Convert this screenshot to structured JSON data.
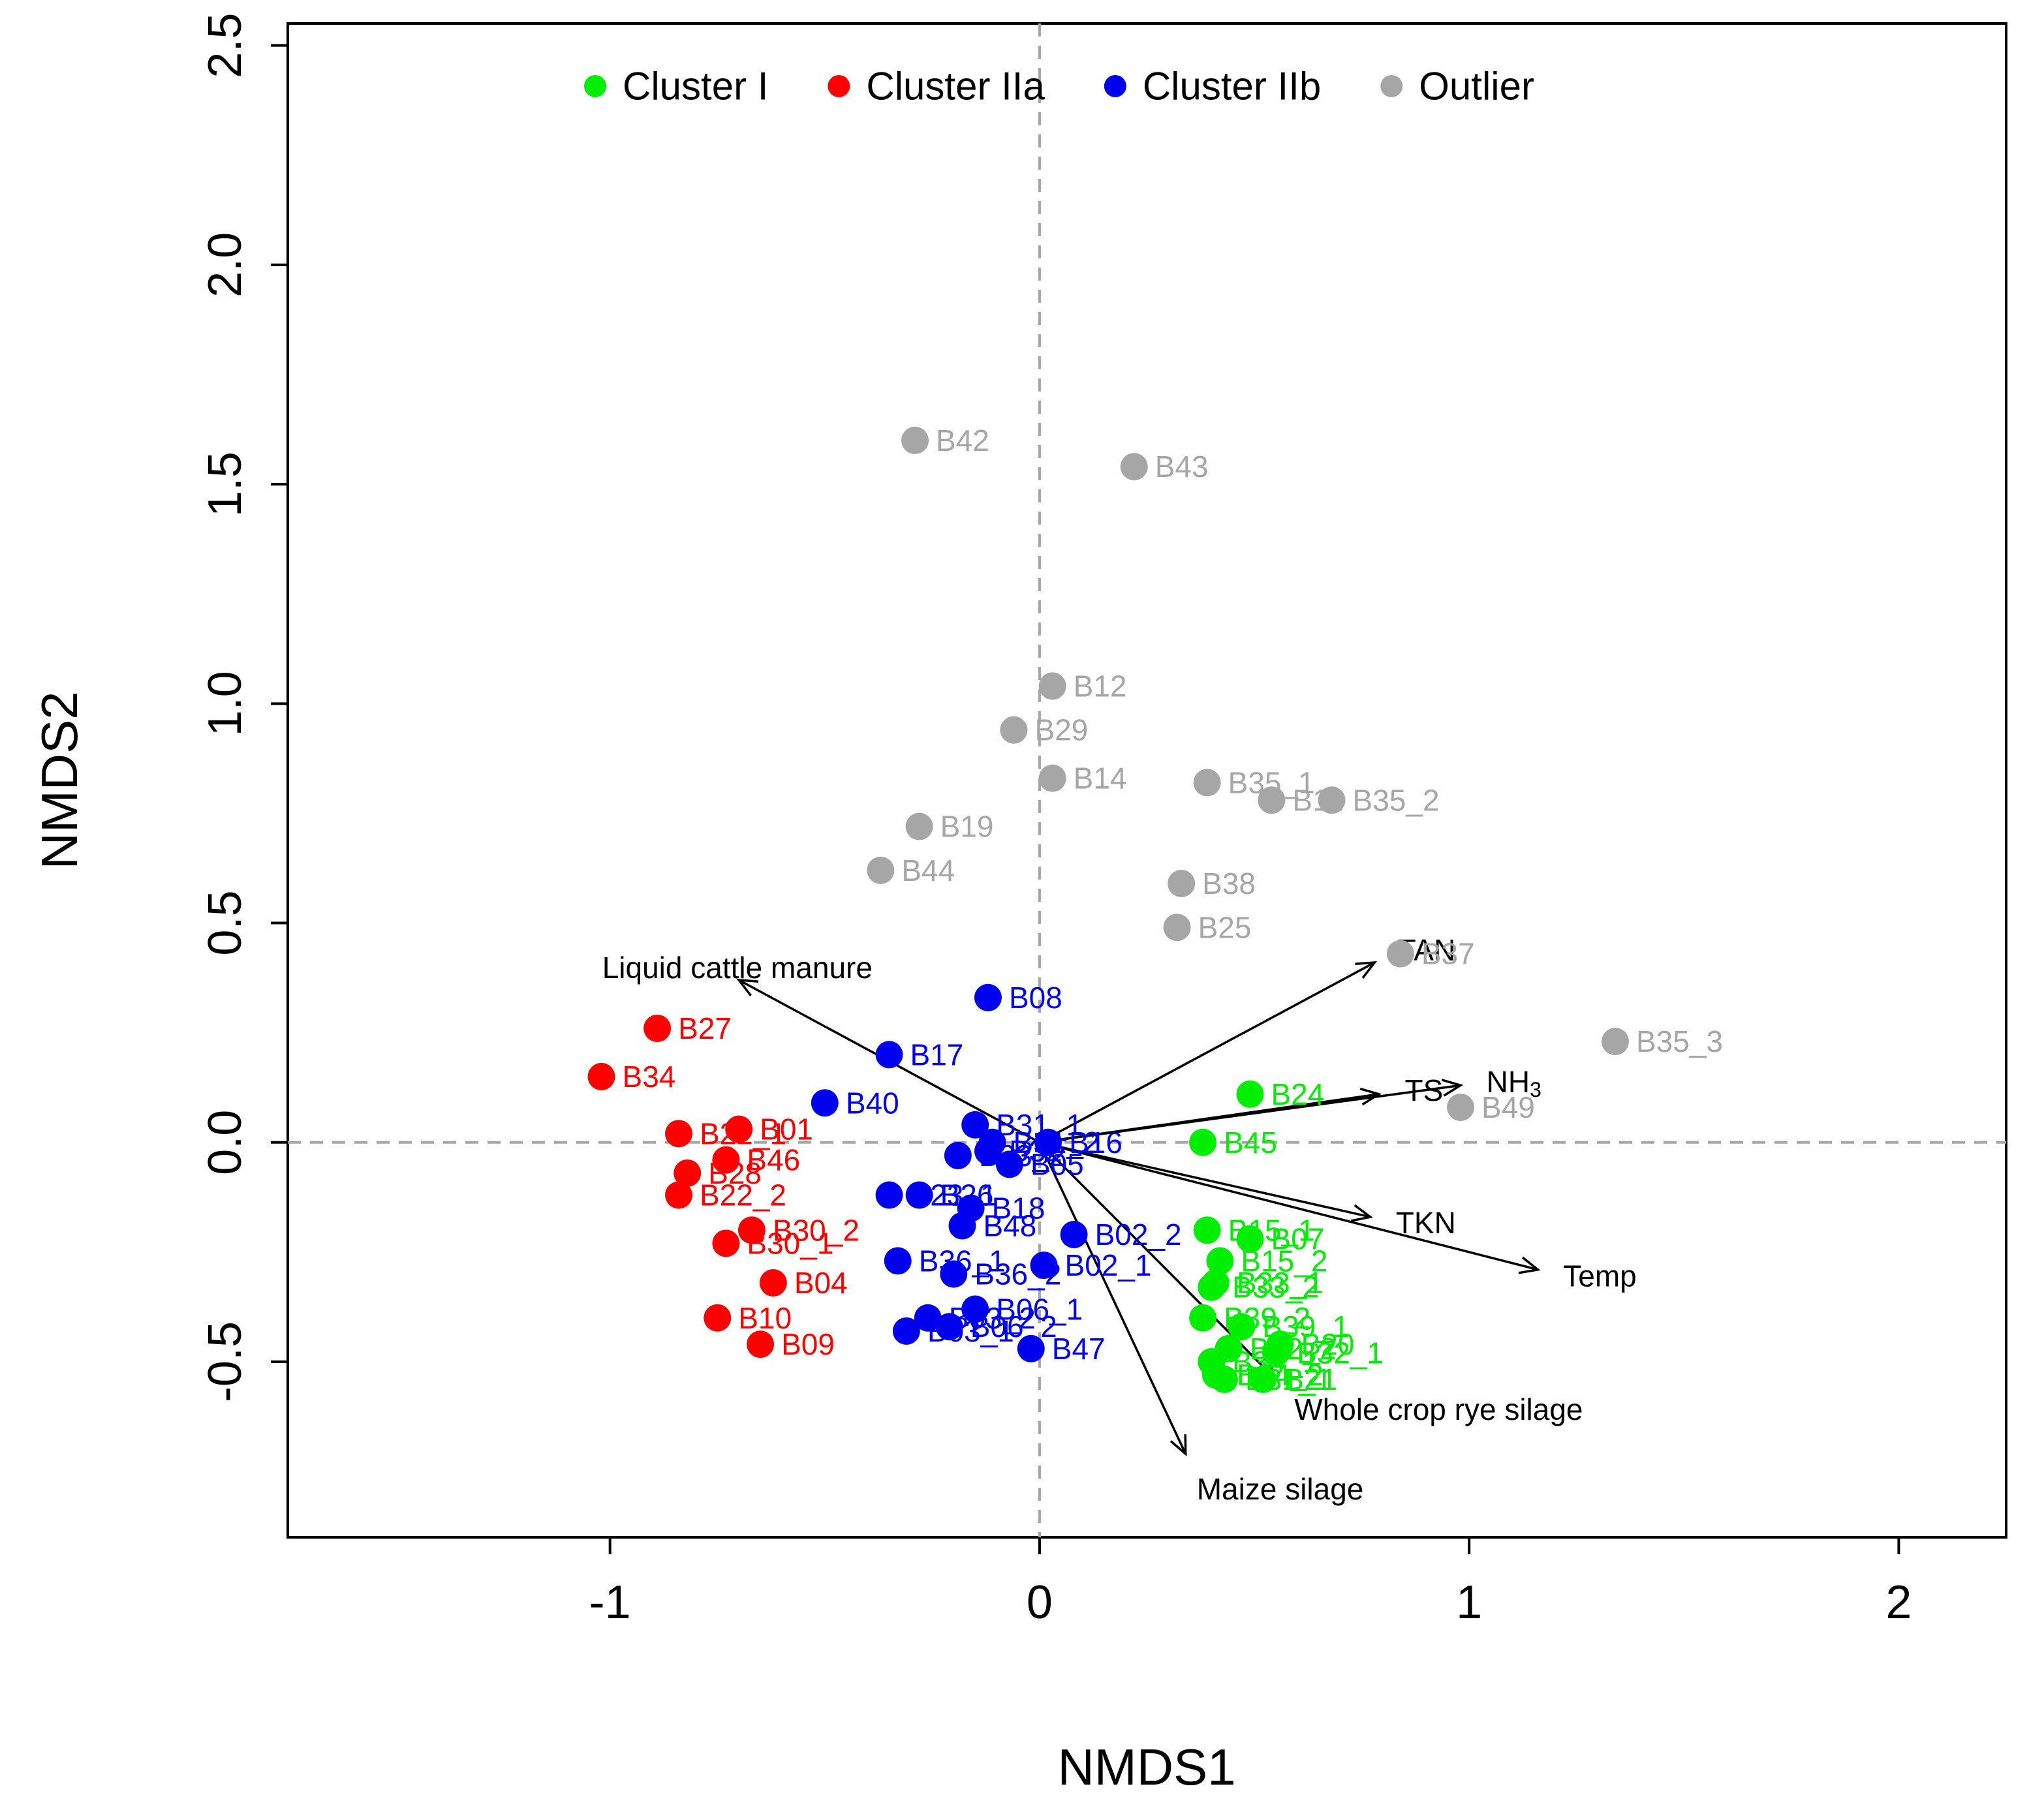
{
  "chart_data": {
    "type": "scatter",
    "title": "",
    "xlabel": "NMDS1",
    "ylabel": "NMDS2",
    "xlim": [
      -1.75,
      2.25
    ],
    "ylim": [
      -0.9,
      2.55
    ],
    "xticks": [
      -1,
      0,
      1,
      2
    ],
    "yticks": [
      -0.5,
      0.0,
      0.5,
      1.0,
      1.5,
      2.0,
      2.5
    ],
    "xtick_labels": [
      "-1",
      "0",
      "1",
      "2"
    ],
    "ytick_labels": [
      "-0.5",
      "0.0",
      "0.5",
      "1.0",
      "1.5",
      "2.0",
      "2.5"
    ],
    "reference_lines": {
      "x": 0,
      "y": 0
    },
    "legend": {
      "position": "top",
      "entries": [
        {
          "label": "Cluster I",
          "color": "#00ee00"
        },
        {
          "label": "Cluster IIa",
          "color": "#ff0000"
        },
        {
          "label": "Cluster IIb",
          "color": "#0000ee"
        },
        {
          "label": "Outlier",
          "color": "#a6a6a6"
        }
      ]
    },
    "series": [
      {
        "name": "Cluster I",
        "color": "#00ee00",
        "points": [
          {
            "label": "B24",
            "x": 0.49,
            "y": 0.11
          },
          {
            "label": "B45",
            "x": 0.38,
            "y": 0.0
          },
          {
            "label": "B15_1",
            "x": 0.39,
            "y": -0.2
          },
          {
            "label": "B07",
            "x": 0.49,
            "y": -0.22
          },
          {
            "label": "B15_2",
            "x": 0.42,
            "y": -0.27
          },
          {
            "label": "B33_1",
            "x": 0.41,
            "y": -0.32
          },
          {
            "label": "B33_2",
            "x": 0.4,
            "y": -0.33
          },
          {
            "label": "B39_2",
            "x": 0.38,
            "y": -0.4
          },
          {
            "label": "B39_1",
            "x": 0.47,
            "y": -0.42
          },
          {
            "label": "B20",
            "x": 0.56,
            "y": -0.46
          },
          {
            "label": "B32_1",
            "x": 0.55,
            "y": -0.48
          },
          {
            "label": "B32_2",
            "x": 0.44,
            "y": -0.47
          },
          {
            "label": "B34_1",
            "x": 0.4,
            "y": -0.5
          },
          {
            "label": "B34_2",
            "x": 0.41,
            "y": -0.53
          },
          {
            "label": "B31_1",
            "x": 0.43,
            "y": -0.54
          },
          {
            "label": "B21",
            "x": 0.52,
            "y": -0.54
          }
        ]
      },
      {
        "name": "Cluster IIa",
        "color": "#ff0000",
        "points": [
          {
            "label": "B27",
            "x": -0.89,
            "y": 0.26
          },
          {
            "label": "B34",
            "x": -1.02,
            "y": 0.15
          },
          {
            "label": "B22_1",
            "x": -0.84,
            "y": 0.02
          },
          {
            "label": "B01",
            "x": -0.7,
            "y": 0.03
          },
          {
            "label": "B46",
            "x": -0.73,
            "y": -0.04
          },
          {
            "label": "B28",
            "x": -0.82,
            "y": -0.07
          },
          {
            "label": "B22_2",
            "x": -0.84,
            "y": -0.12
          },
          {
            "label": "B30_2",
            "x": -0.67,
            "y": -0.2
          },
          {
            "label": "B30_1",
            "x": -0.73,
            "y": -0.23
          },
          {
            "label": "B04",
            "x": -0.62,
            "y": -0.32
          },
          {
            "label": "B10",
            "x": -0.75,
            "y": -0.4
          },
          {
            "label": "B09",
            "x": -0.65,
            "y": -0.46
          }
        ]
      },
      {
        "name": "Cluster IIb",
        "color": "#0000ee",
        "points": [
          {
            "label": "B08",
            "x": -0.12,
            "y": 0.33
          },
          {
            "label": "B17",
            "x": -0.35,
            "y": 0.2
          },
          {
            "label": "B40",
            "x": -0.5,
            "y": 0.09
          },
          {
            "label": "B31_1",
            "x": -0.15,
            "y": 0.04
          },
          {
            "label": "B31_2",
            "x": -0.11,
            "y": 0.0
          },
          {
            "label": "B16",
            "x": 0.02,
            "y": 0.0
          },
          {
            "label": "B32",
            "x": -0.12,
            "y": -0.02
          },
          {
            "label": "B05",
            "x": -0.07,
            "y": -0.05
          },
          {
            "label": "B23_2",
            "x": -0.19,
            "y": -0.03
          },
          {
            "label": "B23_1",
            "x": -0.35,
            "y": -0.12
          },
          {
            "label": "B26",
            "x": -0.28,
            "y": -0.12
          },
          {
            "label": "B18",
            "x": -0.16,
            "y": -0.15
          },
          {
            "label": "B48",
            "x": -0.18,
            "y": -0.19
          },
          {
            "label": "B02_2",
            "x": 0.08,
            "y": -0.21
          },
          {
            "label": "B36_1",
            "x": -0.33,
            "y": -0.27
          },
          {
            "label": "B36_2",
            "x": -0.2,
            "y": -0.3
          },
          {
            "label": "B02_1",
            "x": 0.01,
            "y": -0.28
          },
          {
            "label": "B06_1",
            "x": -0.15,
            "y": -0.38
          },
          {
            "label": "B03_2",
            "x": -0.26,
            "y": -0.4
          },
          {
            "label": "B06_2",
            "x": -0.21,
            "y": -0.42
          },
          {
            "label": "B03_1",
            "x": -0.31,
            "y": -0.43
          },
          {
            "label": "B47",
            "x": -0.02,
            "y": -0.47
          }
        ]
      },
      {
        "name": "Outlier",
        "color": "#a6a6a6",
        "points": [
          {
            "label": "B42",
            "x": -0.29,
            "y": 1.6
          },
          {
            "label": "B43",
            "x": 0.22,
            "y": 1.54
          },
          {
            "label": "B12",
            "x": 0.03,
            "y": 1.04
          },
          {
            "label": "B29",
            "x": -0.06,
            "y": 0.94
          },
          {
            "label": "B14",
            "x": 0.03,
            "y": 0.83
          },
          {
            "label": "B35_1",
            "x": 0.39,
            "y": 0.82
          },
          {
            "label": "B11",
            "x": 0.54,
            "y": 0.78
          },
          {
            "label": "B35_2",
            "x": 0.68,
            "y": 0.78
          },
          {
            "label": "B19",
            "x": -0.28,
            "y": 0.72
          },
          {
            "label": "B44",
            "x": -0.37,
            "y": 0.62
          },
          {
            "label": "B38",
            "x": 0.33,
            "y": 0.59
          },
          {
            "label": "B25",
            "x": 0.32,
            "y": 0.49
          },
          {
            "label": "B37",
            "x": 0.84,
            "y": 0.43
          },
          {
            "label": "B35_3",
            "x": 1.34,
            "y": 0.23
          },
          {
            "label": "B49",
            "x": 0.98,
            "y": 0.08
          }
        ]
      }
    ],
    "vectors": [
      {
        "label": "Liquid cattle manure",
        "x": -0.7,
        "y": 0.37
      },
      {
        "label": "TAN",
        "x": 0.78,
        "y": 0.41
      },
      {
        "label": "TS",
        "x": 0.79,
        "y": 0.11
      },
      {
        "label": "NH",
        "label_sub": "3",
        "x": 0.98,
        "y": 0.13
      },
      {
        "label": "TKN",
        "x": 0.77,
        "y": -0.17
      },
      {
        "label": "Temp",
        "x": 1.16,
        "y": -0.29
      },
      {
        "label": "Whole crop rye silage",
        "x": 0.55,
        "y": -0.54
      },
      {
        "label": "Maize silage",
        "x": 0.34,
        "y": -0.71
      }
    ]
  }
}
